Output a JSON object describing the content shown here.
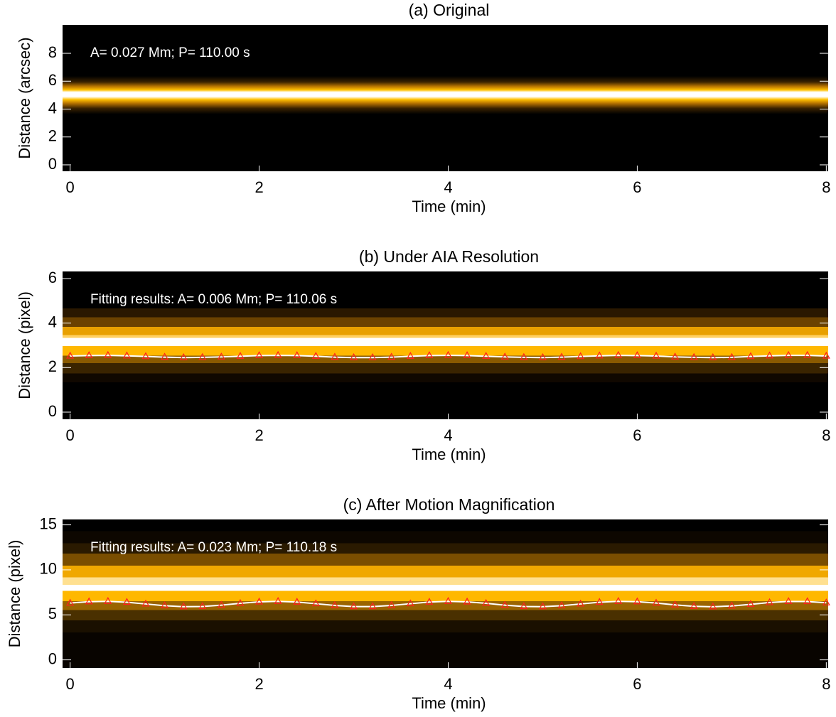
{
  "chart_data": [
    {
      "type": "image",
      "title": "(a) Original",
      "xlabel": "Time (min)",
      "ylabel": "Distance (arcsec)",
      "annotation": "A= 0.027 Mm;  P= 110.00 s",
      "xlim": [
        -0.08,
        8.02
      ],
      "xticks": [
        0,
        2,
        4,
        6,
        8
      ],
      "ylim": [
        -0.46,
        10.04
      ],
      "yticks": [
        0,
        2,
        4,
        6,
        8
      ]
    },
    {
      "type": "image",
      "title": "(b) Under AIA Resolution",
      "xlabel": "Time (min)",
      "ylabel": "Distance (pixel)",
      "annotation": "Fitting results: A= 0.006 Mm;  P= 110.06 s",
      "xlim": [
        -0.08,
        8.02
      ],
      "xticks": [
        0,
        2,
        4,
        6,
        8
      ],
      "ylim": [
        -0.32,
        6.32
      ],
      "yticks": [
        0,
        2,
        4,
        6
      ],
      "x": [
        0,
        0.2,
        0.4,
        0.6,
        0.8,
        1,
        1.2,
        1.4,
        1.6,
        1.8,
        2,
        2.2,
        2.4,
        2.6,
        2.8,
        3,
        3.2,
        3.4,
        3.6,
        3.8,
        4,
        4.2,
        4.4,
        4.6,
        4.8,
        5,
        5.2,
        5.4,
        5.6,
        5.8,
        6,
        6.2,
        6.4,
        6.6,
        6.8,
        7,
        7.2,
        7.4,
        7.6,
        7.8,
        8
      ],
      "series": [
        {
          "color": "#ff2020",
          "values": [
            2.52,
            2.54,
            2.55,
            2.53,
            2.5,
            2.47,
            2.45,
            2.46,
            2.48,
            2.51,
            2.54,
            2.55,
            2.54,
            2.51,
            2.47,
            2.45,
            2.45,
            2.47,
            2.51,
            2.54,
            2.55,
            2.54,
            2.51,
            2.48,
            2.46,
            2.45,
            2.47,
            2.5,
            2.53,
            2.55,
            2.54,
            2.52,
            2.48,
            2.46,
            2.45,
            2.46,
            2.5,
            2.53,
            2.55,
            2.55,
            2.52
          ]
        }
      ]
    },
    {
      "type": "image",
      "title": "(c) After Motion Magnification",
      "xlabel": "Time (min)",
      "ylabel": "Distance (pixel)",
      "annotation": "Fitting results: A= 0.023 Mm;  P= 110.18 s",
      "xlim": [
        -0.08,
        8.02
      ],
      "xticks": [
        0,
        2,
        4,
        6,
        8
      ],
      "ylim": [
        -0.9,
        15.6
      ],
      "yticks": [
        0,
        5,
        10,
        15
      ],
      "x": [
        0,
        0.2,
        0.4,
        0.6,
        0.8,
        1,
        1.2,
        1.4,
        1.6,
        1.8,
        2,
        2.2,
        2.4,
        2.6,
        2.8,
        3,
        3.2,
        3.4,
        3.6,
        3.8,
        4,
        4.2,
        4.4,
        4.6,
        4.8,
        5,
        5.2,
        5.4,
        5.6,
        5.8,
        6,
        6.2,
        6.4,
        6.6,
        6.8,
        7,
        7.2,
        7.4,
        7.6,
        7.8,
        8
      ],
      "series": [
        {
          "color": "#ff2020",
          "values": [
            6.31,
            6.46,
            6.5,
            6.4,
            6.21,
            6.02,
            5.91,
            5.93,
            6.08,
            6.28,
            6.44,
            6.5,
            6.42,
            6.24,
            6.05,
            5.92,
            5.92,
            6.05,
            6.24,
            6.42,
            6.5,
            6.44,
            6.28,
            6.08,
            5.93,
            5.91,
            6.02,
            6.21,
            6.4,
            6.5,
            6.46,
            6.31,
            6.11,
            5.95,
            5.9,
            5.99,
            6.17,
            6.37,
            6.49,
            6.48,
            6.34
          ]
        }
      ]
    }
  ]
}
